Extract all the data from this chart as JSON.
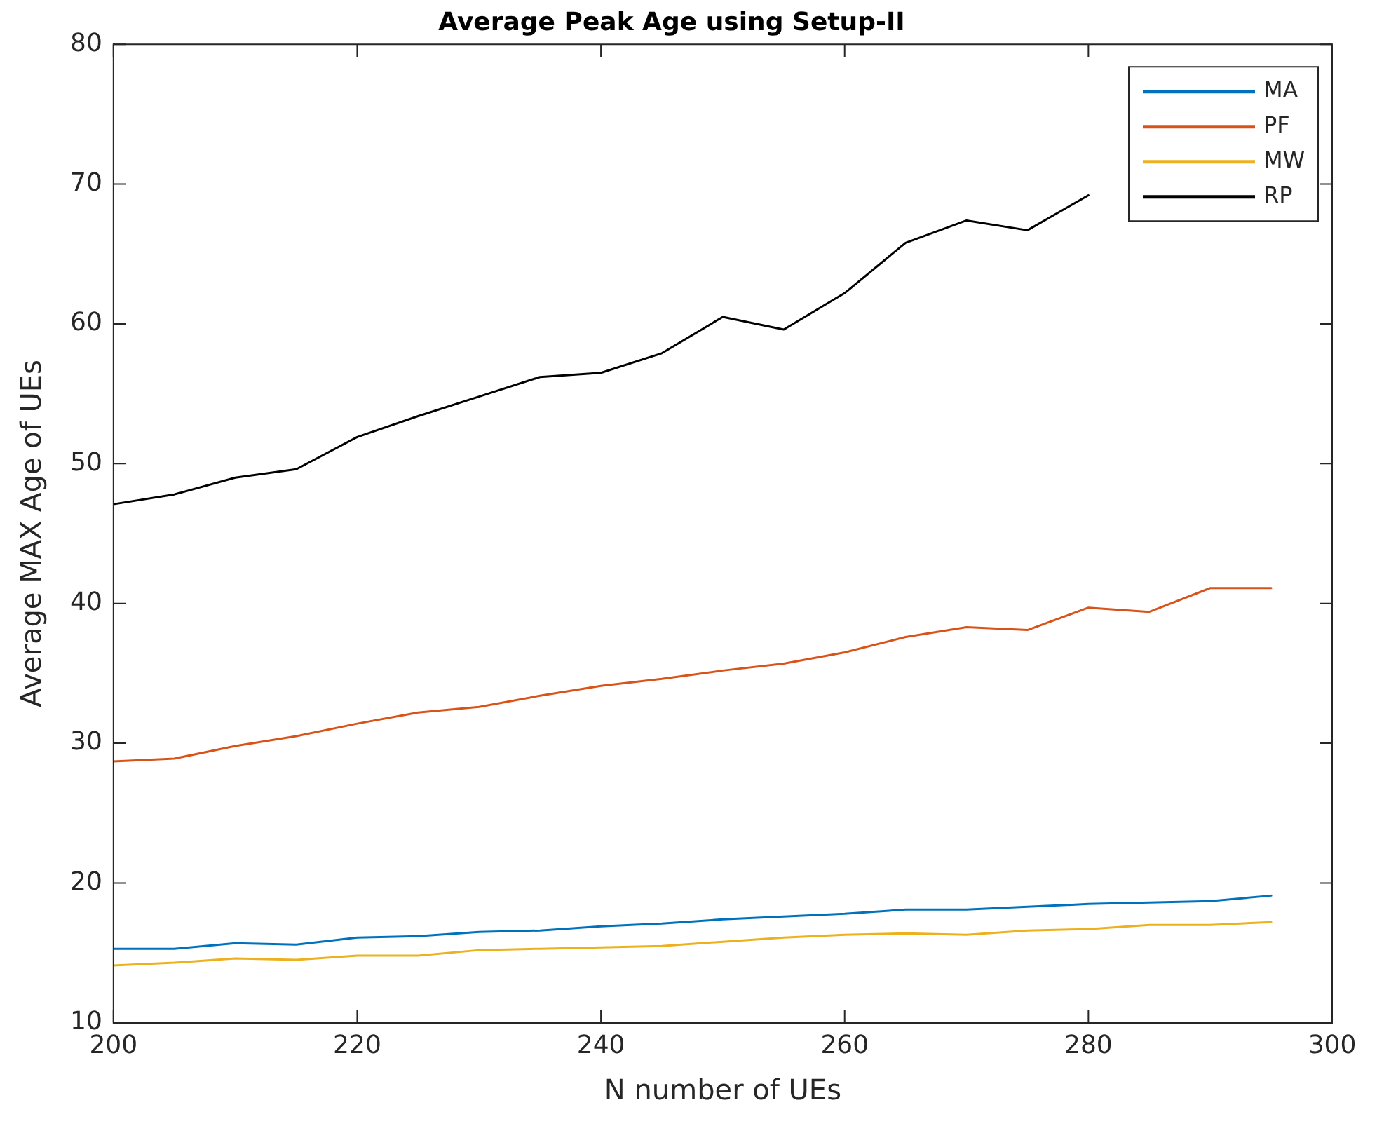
{
  "chart_data": {
    "type": "line",
    "title": "Average Peak Age using Setup-II",
    "xlabel": "N number of UEs",
    "ylabel": "Average MAX Age of UEs",
    "x": [
      200,
      205,
      210,
      215,
      220,
      225,
      230,
      235,
      240,
      245,
      250,
      255,
      260,
      265,
      270,
      275,
      280,
      285,
      290,
      295
    ],
    "xlim": [
      200,
      300
    ],
    "xticks": [
      200,
      220,
      240,
      260,
      280,
      300
    ],
    "ylim": [
      10,
      80
    ],
    "yticks": [
      10,
      20,
      30,
      40,
      50,
      60,
      70,
      80
    ],
    "grid": false,
    "legend": "top right",
    "marker": "none",
    "line_style": "solid",
    "series": [
      {
        "name": "MA",
        "color": "#0072bd",
        "values": [
          15.3,
          15.3,
          15.7,
          15.6,
          16.1,
          16.2,
          16.5,
          16.6,
          16.9,
          17.1,
          17.4,
          17.6,
          17.8,
          18.1,
          18.1,
          18.3,
          18.5,
          18.6,
          18.7,
          19.1
        ]
      },
      {
        "name": "PF",
        "color": "#d95319",
        "values": [
          28.7,
          28.9,
          29.8,
          30.5,
          31.4,
          32.2,
          32.6,
          33.4,
          34.1,
          34.6,
          35.2,
          35.7,
          36.5,
          37.6,
          38.3,
          38.1,
          39.7,
          39.4,
          41.1,
          41.1
        ]
      },
      {
        "name": "MW",
        "color": "#edb120",
        "values": [
          14.1,
          14.3,
          14.6,
          14.5,
          14.8,
          14.8,
          15.2,
          15.3,
          15.4,
          15.5,
          15.8,
          16.1,
          16.3,
          16.4,
          16.3,
          16.6,
          16.7,
          17.0,
          17.0,
          17.2
        ]
      },
      {
        "name": "RP",
        "color": "#000000",
        "values": [
          47.1,
          47.8,
          49.0,
          49.6,
          51.9,
          53.4,
          54.8,
          56.2,
          56.5,
          57.9,
          60.5,
          59.6,
          62.2,
          65.8,
          67.4,
          66.7,
          69.2,
          null,
          null,
          null
        ]
      }
    ]
  }
}
